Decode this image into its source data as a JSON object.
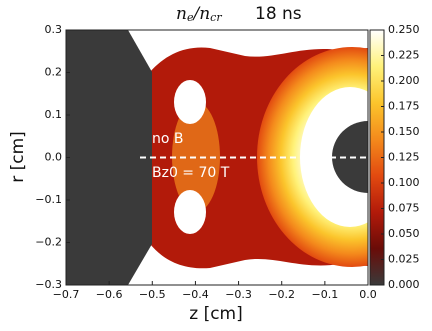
{
  "chart_data": {
    "type": "heatmap",
    "title_math": [
      "n",
      "e",
      "/n",
      "cr"
    ],
    "title": "18 ns",
    "xlabel": "z  [cm]",
    "ylabel": "r  [cm]",
    "annotations": [
      "no B",
      "Bz0 = 70 T"
    ],
    "xlim": [
      -0.7,
      0
    ],
    "xticks": [
      {
        "value": -0.7,
        "label": "−0.7"
      },
      {
        "value": -0.6,
        "label": "−0.6"
      },
      {
        "value": -0.5,
        "label": "−0.5"
      },
      {
        "value": -0.4,
        "label": "−0.4"
      },
      {
        "value": -0.3,
        "label": "−0.3"
      },
      {
        "value": -0.2,
        "label": "−0.2"
      },
      {
        "value": -0.1,
        "label": "−0.1"
      },
      {
        "value": 0,
        "label": "0.0"
      }
    ],
    "ylim": [
      -0.3,
      0.3
    ],
    "yticks": [
      {
        "value": -0.3,
        "label": "−0.3"
      },
      {
        "value": -0.2,
        "label": "−0.2"
      },
      {
        "value": -0.1,
        "label": "−0.1"
      },
      {
        "value": 0,
        "label": "0.0"
      },
      {
        "value": 0.1,
        "label": "0.1"
      },
      {
        "value": 0.2,
        "label": "0.2"
      },
      {
        "value": 0.3,
        "label": "0.3"
      }
    ],
    "clim": [
      0,
      0.25
    ],
    "cticks": [
      {
        "value": 0,
        "label": "0.000"
      },
      {
        "value": 0.025,
        "label": "0.025"
      },
      {
        "value": 0.05,
        "label": "0.050"
      },
      {
        "value": 0.075,
        "label": "0.075"
      },
      {
        "value": 0.1,
        "label": "0.100"
      },
      {
        "value": 0.125,
        "label": "0.125"
      },
      {
        "value": 0.15,
        "label": "0.150"
      },
      {
        "value": 0.175,
        "label": "0.175"
      },
      {
        "value": 0.2,
        "label": "0.200"
      },
      {
        "value": 0.225,
        "label": "0.225"
      },
      {
        "value": 0.25,
        "label": "0.250"
      }
    ],
    "colormap": [
      "#3a3a3a",
      "#6a0c08",
      "#b21a0a",
      "#e24a10",
      "#f48a1c",
      "#fbc52c",
      "#fff27a",
      "#ffffff"
    ]
  }
}
